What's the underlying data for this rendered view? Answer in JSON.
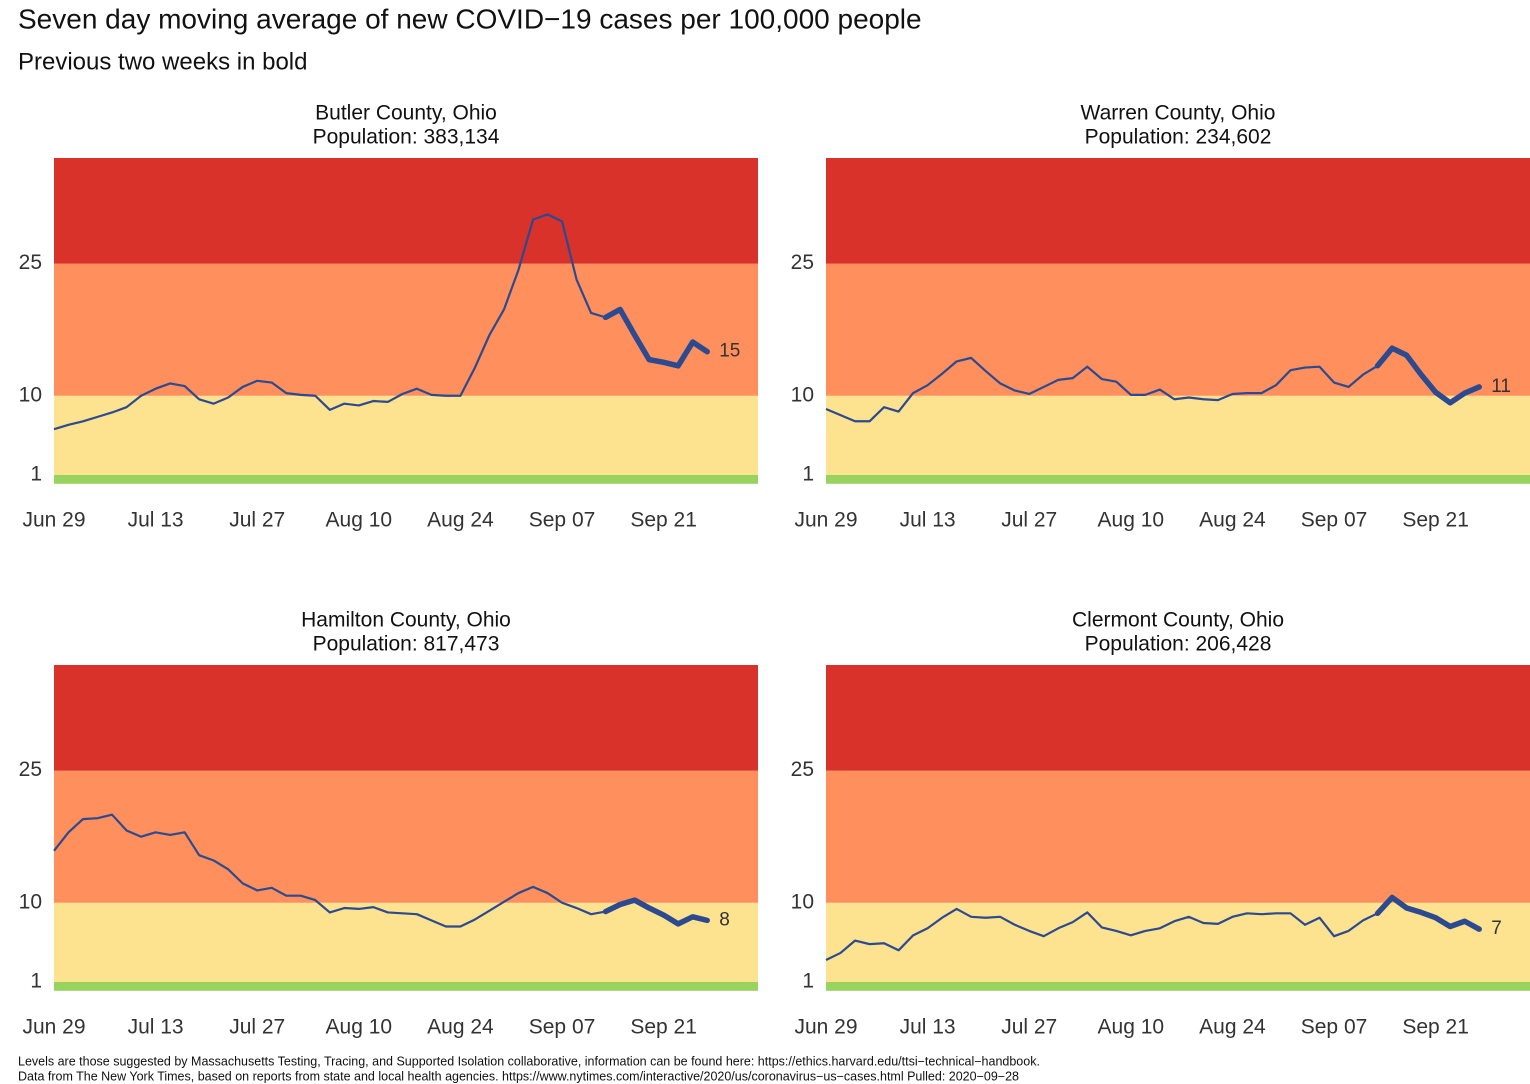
{
  "page": {
    "title": "Seven day moving average of new COVID−19 cases per 100,000 people",
    "subtitle": "Previous two weeks in bold",
    "footnotes": [
      "Levels are those suggested by Massachusetts Testing, Tracing, and Supported Isolation collaborative, information can be found here: https://ethics.harvard.edu/ttsi−technical−handbook.",
      "Data from The New York Times, based on reports from state and local health agencies. https://www.nytimes.com/interactive/2020/us/coronavirus−us−cases.html Pulled: 2020−09−28"
    ]
  },
  "chart_data": [
    {
      "type": "line",
      "title": "Butler County, Ohio",
      "subtitle": "Population: 383,134",
      "x": [
        "Jun 29",
        "Jul 01",
        "Jul 03",
        "Jul 05",
        "Jul 07",
        "Jul 09",
        "Jul 11",
        "Jul 13",
        "Jul 15",
        "Jul 17",
        "Jul 19",
        "Jul 21",
        "Jul 23",
        "Jul 25",
        "Jul 27",
        "Jul 29",
        "Jul 31",
        "Aug 02",
        "Aug 04",
        "Aug 06",
        "Aug 08",
        "Aug 10",
        "Aug 12",
        "Aug 14",
        "Aug 16",
        "Aug 18",
        "Aug 20",
        "Aug 22",
        "Aug 24",
        "Aug 26",
        "Aug 28",
        "Aug 30",
        "Sep 01",
        "Sep 03",
        "Sep 05",
        "Sep 07",
        "Sep 09",
        "Sep 11",
        "Sep 13",
        "Sep 15",
        "Sep 17",
        "Sep 19",
        "Sep 21",
        "Sep 23",
        "Sep 25",
        "Sep 27"
      ],
      "values": [
        6.2,
        6.7,
        7.1,
        7.6,
        8.1,
        8.7,
        10.0,
        10.8,
        11.4,
        11.1,
        9.6,
        9.1,
        9.8,
        11.0,
        11.7,
        11.5,
        10.3,
        10.1,
        10.0,
        8.4,
        9.1,
        8.9,
        9.4,
        9.3,
        10.2,
        10.8,
        10.1,
        10.0,
        10.0,
        13.2,
        16.9,
        19.8,
        24.3,
        30.0,
        30.6,
        29.8,
        23.2,
        19.4,
        18.9,
        19.8,
        16.9,
        14.1,
        13.8,
        13.4,
        16.1,
        15
      ],
      "color": "#2b4a90",
      "highlight_from": "Sep 13",
      "xlim": [
        "Jun 29",
        "Oct 04"
      ],
      "xticks": [
        "Jun 29",
        "Jul 13",
        "Jul 27",
        "Aug 10",
        "Aug 24",
        "Sep 07",
        "Sep 21"
      ],
      "ylim": [
        0,
        37
      ],
      "yticks": [
        1,
        10,
        25
      ],
      "band_colors": [
        "#98d25f",
        "#fde290",
        "#ff8f5c",
        "#d8322a"
      ]
    },
    {
      "type": "line",
      "title": "Warren County, Ohio",
      "subtitle": "Population: 234,602",
      "x": [
        "Jun 29",
        "Jul 01",
        "Jul 03",
        "Jul 05",
        "Jul 07",
        "Jul 09",
        "Jul 11",
        "Jul 13",
        "Jul 15",
        "Jul 17",
        "Jul 19",
        "Jul 21",
        "Jul 23",
        "Jul 25",
        "Jul 27",
        "Jul 29",
        "Jul 31",
        "Aug 02",
        "Aug 04",
        "Aug 06",
        "Aug 08",
        "Aug 10",
        "Aug 12",
        "Aug 14",
        "Aug 16",
        "Aug 18",
        "Aug 20",
        "Aug 22",
        "Aug 24",
        "Aug 26",
        "Aug 28",
        "Aug 30",
        "Sep 01",
        "Sep 03",
        "Sep 05",
        "Sep 07",
        "Sep 09",
        "Sep 11",
        "Sep 13",
        "Sep 15",
        "Sep 17",
        "Sep 19",
        "Sep 21",
        "Sep 23",
        "Sep 25",
        "Sep 27"
      ],
      "values": [
        8.5,
        7.8,
        7.1,
        7.1,
        8.7,
        8.2,
        10.3,
        11.2,
        12.5,
        13.9,
        14.3,
        12.8,
        11.4,
        10.6,
        10.2,
        11.0,
        11.8,
        12.0,
        13.3,
        11.9,
        11.6,
        10.1,
        10.1,
        10.7,
        9.6,
        9.8,
        9.6,
        9.5,
        10.2,
        10.3,
        10.3,
        11.2,
        12.9,
        13.2,
        13.3,
        11.5,
        11.0,
        12.4,
        13.4,
        15.4,
        14.6,
        12.4,
        10.4,
        9.2,
        10.3,
        11
      ],
      "color": "#2b4a90",
      "highlight_from": "Sep 13",
      "xlim": [
        "Jun 29",
        "Oct 04"
      ],
      "xticks": [
        "Jun 29",
        "Jul 13",
        "Jul 27",
        "Aug 10",
        "Aug 24",
        "Sep 07",
        "Sep 21"
      ],
      "ylim": [
        0,
        37
      ],
      "yticks": [
        1,
        10,
        25
      ],
      "band_colors": [
        "#98d25f",
        "#fde290",
        "#ff8f5c",
        "#d8322a"
      ]
    },
    {
      "type": "line",
      "title": "Hamilton County, Ohio",
      "subtitle": "Population: 817,473",
      "x": [
        "Jun 29",
        "Jul 01",
        "Jul 03",
        "Jul 05",
        "Jul 07",
        "Jul 09",
        "Jul 11",
        "Jul 13",
        "Jul 15",
        "Jul 17",
        "Jul 19",
        "Jul 21",
        "Jul 23",
        "Jul 25",
        "Jul 27",
        "Jul 29",
        "Jul 31",
        "Aug 02",
        "Aug 04",
        "Aug 06",
        "Aug 08",
        "Aug 10",
        "Aug 12",
        "Aug 14",
        "Aug 16",
        "Aug 18",
        "Aug 20",
        "Aug 22",
        "Aug 24",
        "Aug 26",
        "Aug 28",
        "Aug 30",
        "Sep 01",
        "Sep 03",
        "Sep 05",
        "Sep 07",
        "Sep 09",
        "Sep 11",
        "Sep 13",
        "Sep 15",
        "Sep 17",
        "Sep 19",
        "Sep 21",
        "Sep 23",
        "Sep 25",
        "Sep 27"
      ],
      "values": [
        15.9,
        18.0,
        19.5,
        19.6,
        20.0,
        18.2,
        17.5,
        18.0,
        17.7,
        18.0,
        15.4,
        14.8,
        13.8,
        12.2,
        11.4,
        11.7,
        10.8,
        10.8,
        10.3,
        8.9,
        9.4,
        9.3,
        9.5,
        8.9,
        8.8,
        8.7,
        8.0,
        7.3,
        7.3,
        8.1,
        9.1,
        10.1,
        11.1,
        11.8,
        11.1,
        10.0,
        9.4,
        8.7,
        9.0,
        9.8,
        10.3,
        9.4,
        8.6,
        7.6,
        8.4,
        8
      ],
      "color": "#2b4a90",
      "highlight_from": "Sep 13",
      "xlim": [
        "Jun 29",
        "Oct 04"
      ],
      "xticks": [
        "Jun 29",
        "Jul 13",
        "Jul 27",
        "Aug 10",
        "Aug 24",
        "Sep 07",
        "Sep 21"
      ],
      "ylim": [
        0,
        37
      ],
      "yticks": [
        1,
        10,
        25
      ],
      "band_colors": [
        "#98d25f",
        "#fde290",
        "#ff8f5c",
        "#d8322a"
      ]
    },
    {
      "type": "line",
      "title": "Clermont County, Ohio",
      "subtitle": "Population: 206,428",
      "x": [
        "Jun 29",
        "Jul 01",
        "Jul 03",
        "Jul 05",
        "Jul 07",
        "Jul 09",
        "Jul 11",
        "Jul 13",
        "Jul 15",
        "Jul 17",
        "Jul 19",
        "Jul 21",
        "Jul 23",
        "Jul 25",
        "Jul 27",
        "Jul 29",
        "Jul 31",
        "Aug 02",
        "Aug 04",
        "Aug 06",
        "Aug 08",
        "Aug 10",
        "Aug 12",
        "Aug 14",
        "Aug 16",
        "Aug 18",
        "Aug 20",
        "Aug 22",
        "Aug 24",
        "Aug 26",
        "Aug 28",
        "Aug 30",
        "Sep 01",
        "Sep 03",
        "Sep 05",
        "Sep 07",
        "Sep 09",
        "Sep 11",
        "Sep 13",
        "Sep 15",
        "Sep 17",
        "Sep 19",
        "Sep 21",
        "Sep 23",
        "Sep 25",
        "Sep 27"
      ],
      "values": [
        3.5,
        4.3,
        5.7,
        5.3,
        5.4,
        4.6,
        6.3,
        7.1,
        8.3,
        9.3,
        8.4,
        8.3,
        8.4,
        7.5,
        6.8,
        6.2,
        7.1,
        7.8,
        8.9,
        7.2,
        6.8,
        6.3,
        6.8,
        7.1,
        7.9,
        8.4,
        7.7,
        7.6,
        8.4,
        8.8,
        8.7,
        8.8,
        8.8,
        7.5,
        8.3,
        6.2,
        6.8,
        8.0,
        8.8,
        10.6,
        9.4,
        8.9,
        8.3,
        7.3,
        7.9,
        7
      ],
      "color": "#2b4a90",
      "highlight_from": "Sep 13",
      "xlim": [
        "Jun 29",
        "Oct 04"
      ],
      "xticks": [
        "Jun 29",
        "Jul 13",
        "Jul 27",
        "Aug 10",
        "Aug 24",
        "Sep 07",
        "Sep 21"
      ],
      "ylim": [
        0,
        37
      ],
      "yticks": [
        1,
        10,
        25
      ],
      "band_colors": [
        "#98d25f",
        "#fde290",
        "#ff8f5c",
        "#d8322a"
      ]
    }
  ]
}
